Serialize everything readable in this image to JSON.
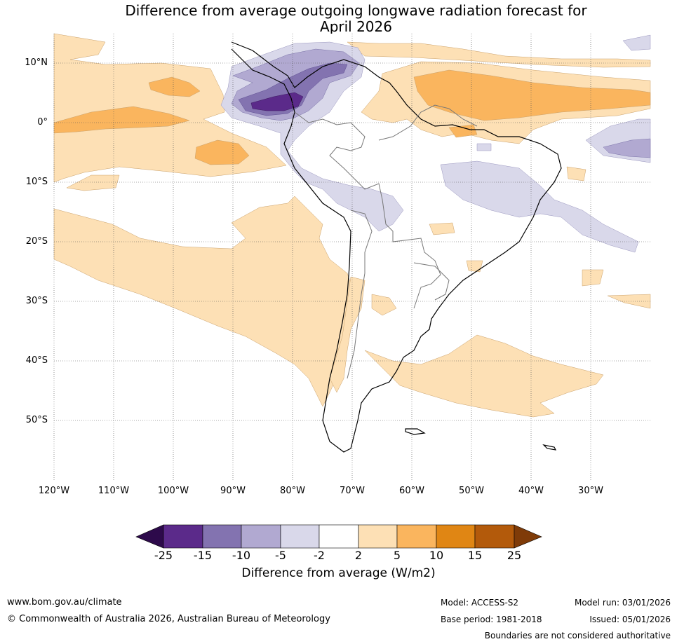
{
  "title": {
    "line1": "Difference from average outgoing longwave radiation forecast for",
    "line2": "April 2026"
  },
  "map": {
    "lat_labels": [
      "10°N",
      "0°",
      "10°S",
      "20°S",
      "30°S",
      "40°S",
      "50°S"
    ],
    "lon_labels": [
      "120°W",
      "110°W",
      "100°W",
      "90°W",
      "80°W",
      "70°W",
      "60°W",
      "50°W",
      "40°W",
      "30°W"
    ]
  },
  "colorbar": {
    "ticks": [
      "-25",
      "-15",
      "-10",
      "-5",
      "-2",
      "2",
      "5",
      "10",
      "15",
      "25"
    ],
    "label": "Difference from average (W/m2)",
    "colors": [
      "#2d0a4b",
      "#5b2a8a",
      "#8373b0",
      "#b1a9d1",
      "#d9d8ea",
      "#ffffff",
      "#fde0b5",
      "#fab55e",
      "#e08614",
      "#b35a0b",
      "#7f3b08"
    ]
  },
  "footer": {
    "website": "www.bom.gov.au/climate",
    "copyright": "© Commonwealth of Australia 2026, Australian Bureau of Meteorology",
    "model": "Model: ACCESS-S2",
    "base_period": "Base period: 1981-2018",
    "model_run": "Model run: 03/01/2026",
    "issued": "Issued: 05/01/2026",
    "disclaimer": "Boundaries are not considered authoritative"
  }
}
